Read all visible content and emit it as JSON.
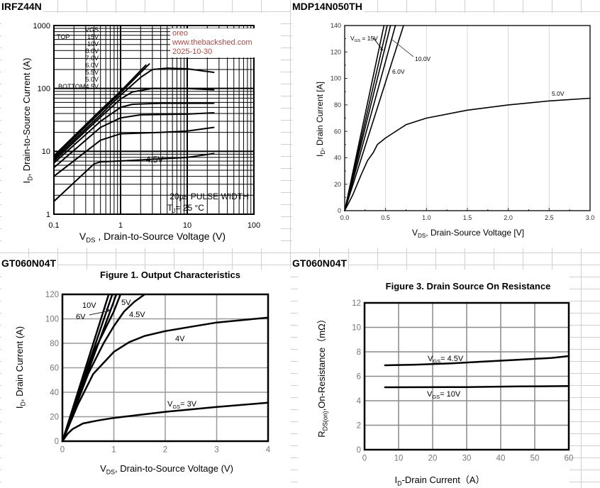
{
  "sheet": {
    "row1_left": "IRFZ44N",
    "row1_right": "MDP14N050TH",
    "row2_left": "GT060N04T",
    "row2_right": "GT060N04T"
  },
  "watermark": {
    "line1": "oreo",
    "line2": "www.thebackshed.com",
    "line3": "2025-10-30"
  },
  "chart_data": [
    {
      "type": "line",
      "title": "",
      "xscale": "log",
      "yscale": "log",
      "xlim": [
        0.1,
        100
      ],
      "ylim": [
        1,
        1000
      ],
      "xticks": [
        "0.1",
        "1",
        "10",
        "100"
      ],
      "yticks": [
        "1",
        "10",
        "100",
        "1000"
      ],
      "grid": true,
      "xlabel": {
        "main": "V",
        "sub": "DS",
        "rest": " , Drain-to-Source Voltage (V)"
      },
      "ylabel": {
        "main": "I",
        "sub": "D",
        "rest": ",  Drain-to-Source Current (A)"
      },
      "legend": {
        "header": "VGS",
        "top": "TOP",
        "bottom": "BOTTOM",
        "items": [
          "15V",
          "10V",
          "8.0V",
          "7.0V",
          "6.0V",
          "5.5V",
          "5.0V",
          "4.5V"
        ],
        "placement": "top-left"
      },
      "annotations": [
        "20µs PULSE WIDTH"
      ],
      "tj": {
        "main": "T",
        "sub": "J",
        "rest": "= 25 °C"
      },
      "series": [
        {
          "name": "15V",
          "points": [
            [
              0.1,
              8.5
            ],
            [
              0.5,
              45
            ],
            [
              1,
              90
            ],
            [
              2.4,
              235
            ]
          ]
        },
        {
          "name": "10V",
          "points": [
            [
              0.1,
              8
            ],
            [
              0.5,
              42
            ],
            [
              1,
              85
            ],
            [
              2.7,
              245
            ]
          ]
        },
        {
          "name": "8.0V",
          "points": [
            [
              0.1,
              7.5
            ],
            [
              0.5,
              38
            ],
            [
              1,
              78
            ],
            [
              2,
              150
            ],
            [
              3,
              200
            ],
            [
              5,
              210
            ],
            [
              10,
              205
            ],
            [
              25,
              180
            ]
          ]
        },
        {
          "name": "7.0V",
          "points": [
            [
              0.1,
              7
            ],
            [
              0.5,
              35
            ],
            [
              1,
              68
            ],
            [
              1.5,
              88
            ],
            [
              3,
              100
            ],
            [
              10,
              100
            ],
            [
              25,
              95
            ]
          ]
        },
        {
          "name": "6.0V",
          "points": [
            [
              0.1,
              6.5
            ],
            [
              0.5,
              30
            ],
            [
              1,
              50
            ],
            [
              1.5,
              56
            ],
            [
              4,
              58
            ],
            [
              25,
              58
            ]
          ]
        },
        {
          "name": "5.5V",
          "points": [
            [
              0.1,
              5.5
            ],
            [
              0.5,
              24
            ],
            [
              1,
              34
            ],
            [
              2,
              38
            ],
            [
              10,
              39
            ],
            [
              25,
              41
            ]
          ]
        },
        {
          "name": "5.0V",
          "points": [
            [
              0.1,
              4
            ],
            [
              0.5,
              15
            ],
            [
              1,
              19
            ],
            [
              4,
              20
            ],
            [
              10,
              21
            ],
            [
              25,
              24
            ]
          ]
        },
        {
          "name": "4.5V",
          "points": [
            [
              0.1,
              1.6
            ],
            [
              0.4,
              6.3
            ],
            [
              0.5,
              6.8
            ],
            [
              2,
              7.3
            ],
            [
              10,
              8
            ],
            [
              25,
              9.2
            ]
          ]
        }
      ],
      "series_labels": [
        "4.5V"
      ]
    },
    {
      "type": "line",
      "title": "",
      "xlim": [
        0,
        3
      ],
      "ylim": [
        0,
        140
      ],
      "xticks": [
        "0.0",
        "0.5",
        "1.0",
        "1.5",
        "2.0",
        "2.5",
        "3.0"
      ],
      "yticks": [
        "0",
        "20",
        "40",
        "60",
        "80",
        "100",
        "120",
        "140"
      ],
      "grid": true,
      "xlabel": {
        "main": "V",
        "sub": "DS",
        "rest": ", Drain-Source Voltage [V]"
      },
      "ylabel": {
        "main": "I",
        "sub": "D",
        "rest": ", Drain Current [A]"
      },
      "series": [
        {
          "name": "15V",
          "points": [
            [
              0,
              0
            ],
            [
              0.48,
              140
            ]
          ]
        },
        {
          "name": "",
          "points": [
            [
              0,
              0
            ],
            [
              0.52,
              140
            ]
          ]
        },
        {
          "name": "10.0V",
          "points": [
            [
              0,
              0
            ],
            [
              0.56,
              140
            ]
          ]
        },
        {
          "name": "",
          "points": [
            [
              0,
              0
            ],
            [
              0.62,
              140
            ]
          ]
        },
        {
          "name": "6.0V",
          "points": [
            [
              0,
              0
            ],
            [
              0.72,
              140
            ]
          ]
        },
        {
          "name": "5.0V",
          "points": [
            [
              0,
              0
            ],
            [
              0.1,
              12
            ],
            [
              0.2,
              27
            ],
            [
              0.28,
              38
            ],
            [
              0.35,
              44
            ],
            [
              0.4,
              50
            ],
            [
              0.5,
              55
            ],
            [
              0.6,
              59
            ],
            [
              0.75,
              65
            ],
            [
              1,
              70
            ],
            [
              1.5,
              76
            ],
            [
              2,
              80
            ],
            [
              2.5,
              83
            ],
            [
              3,
              85
            ]
          ]
        }
      ],
      "series_labels": [
        {
          "main": "V",
          "sub": "GS",
          "rest": " = 15V"
        },
        {
          "main": "10.0V",
          "sub": "",
          "rest": ""
        },
        {
          "main": "6.0V",
          "sub": "",
          "rest": ""
        },
        {
          "main": "5.0V",
          "sub": "",
          "rest": ""
        }
      ]
    },
    {
      "type": "line",
      "title": "Figure 1. Output Characteristics",
      "xlim": [
        0,
        4
      ],
      "ylim": [
        0,
        120
      ],
      "xticks": [
        "0",
        "1",
        "2",
        "3",
        "4"
      ],
      "yticks": [
        "0",
        "20",
        "40",
        "60",
        "80",
        "100",
        "120"
      ],
      "grid": true,
      "xlabel": {
        "main": "V",
        "sub": "DS",
        "rest": ", Drain-to-Source Voltage (V)"
      },
      "ylabel": {
        "main": "I",
        "sub": "D",
        "rest": ", Drain Current (A)"
      },
      "series": [
        {
          "name": "10V",
          "points": [
            [
              0,
              0
            ],
            [
              0.9,
              120
            ]
          ]
        },
        {
          "name": "6V",
          "points": [
            [
              0,
              0
            ],
            [
              0.97,
              120
            ]
          ]
        },
        {
          "name": "5V",
          "points": [
            [
              0,
              0
            ],
            [
              1.05,
              120
            ]
          ]
        },
        {
          "name": "",
          "points": [
            [
              0,
              0
            ],
            [
              0.6,
              72
            ],
            [
              1.0,
              106
            ],
            [
              1.13,
              120
            ]
          ]
        },
        {
          "name": "4.5V",
          "points": [
            [
              0,
              0
            ],
            [
              0.5,
              55
            ],
            [
              0.8,
              80
            ],
            [
              1.0,
              94
            ],
            [
              1.2,
              106
            ],
            [
              1.4,
              114
            ],
            [
              1.6,
              120
            ]
          ]
        },
        {
          "name": "4V",
          "points": [
            [
              0,
              0
            ],
            [
              0.3,
              30
            ],
            [
              0.6,
              55
            ],
            [
              1,
              73
            ],
            [
              1.3,
              81
            ],
            [
              1.6,
              86
            ],
            [
              2,
              90
            ],
            [
              2.5,
              93.5
            ],
            [
              3,
              97
            ],
            [
              4,
              101
            ]
          ]
        },
        {
          "name": "VGS= 3V",
          "points": [
            [
              0,
              0
            ],
            [
              0.1,
              6
            ],
            [
              0.2,
              10
            ],
            [
              0.4,
              14.5
            ],
            [
              0.7,
              17
            ],
            [
              1,
              19
            ],
            [
              1.5,
              21.5
            ],
            [
              2,
              24
            ],
            [
              3,
              28
            ],
            [
              4,
              31.5
            ]
          ]
        }
      ],
      "series_labels": [
        {
          "main": "10V",
          "sub": "",
          "rest": ""
        },
        {
          "main": "6V",
          "sub": "",
          "rest": ""
        },
        {
          "main": "5V",
          "sub": "",
          "rest": ""
        },
        {
          "main": "4.5V",
          "sub": "",
          "rest": ""
        },
        {
          "main": "4V",
          "sub": "",
          "rest": ""
        },
        {
          "main": "V",
          "sub": "GS",
          "rest": "= 3V"
        }
      ]
    },
    {
      "type": "line",
      "title": "Figure 3. Drain Source On Resistance",
      "xlim": [
        0,
        60
      ],
      "ylim": [
        0,
        12
      ],
      "xticks": [
        "0",
        "10",
        "20",
        "30",
        "40",
        "50",
        "60"
      ],
      "yticks": [
        "0",
        "2",
        "4",
        "6",
        "8",
        "10",
        "12"
      ],
      "grid": true,
      "xlabel": {
        "main": "I",
        "sub": "D",
        "rest": "-Drain Current（A）"
      },
      "ylabel": {
        "main": "R",
        "sub": "DS(on)",
        "rest": ",On-Resistance（mΩ）"
      },
      "series": [
        {
          "name": "VGS= 4.5V",
          "points": [
            [
              6,
              6.9
            ],
            [
              15,
              6.95
            ],
            [
              25,
              7.05
            ],
            [
              35,
              7.2
            ],
            [
              45,
              7.35
            ],
            [
              55,
              7.5
            ],
            [
              60,
              7.65
            ]
          ]
        },
        {
          "name": "VGS= 10V",
          "points": [
            [
              6,
              5.1
            ],
            [
              30,
              5.12
            ],
            [
              45,
              5.17
            ],
            [
              60,
              5.2
            ]
          ]
        }
      ],
      "series_labels": [
        {
          "main": "V",
          "sub": "GS",
          "rest": "= 4.5V"
        },
        {
          "main": "V",
          "sub": "GS",
          "rest": "= 10V"
        }
      ]
    }
  ]
}
